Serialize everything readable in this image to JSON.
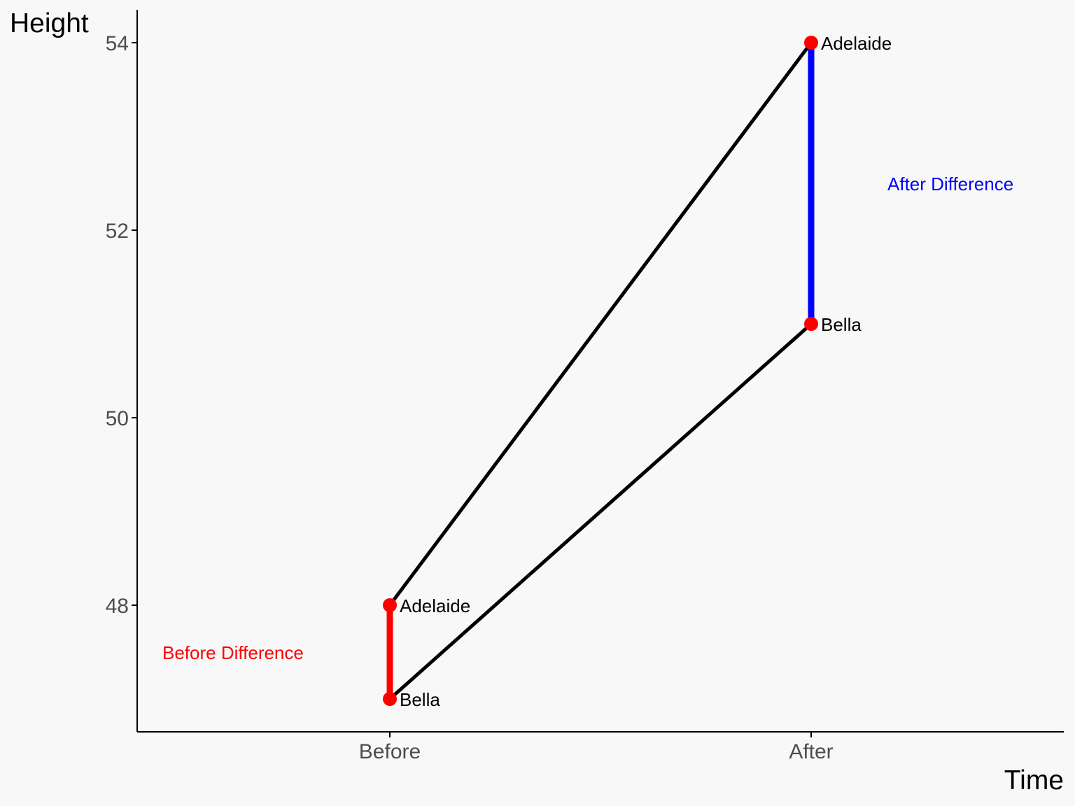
{
  "chart_data": {
    "type": "line",
    "xlabel": "Time",
    "ylabel": "Height",
    "categories": [
      "Before",
      "After"
    ],
    "yticks": [
      48,
      50,
      52,
      54
    ],
    "ylim": [
      46.7,
      54.35
    ],
    "grid": false,
    "series": [
      {
        "name": "Adelaide",
        "values": [
          48,
          54
        ]
      },
      {
        "name": "Bella",
        "values": [
          47,
          51
        ]
      }
    ],
    "annotations": [
      {
        "text": "Before Difference",
        "category": "Before",
        "from": 47,
        "to": 48,
        "color": "#ff0000"
      },
      {
        "text": "After Difference",
        "category": "After",
        "from": 51,
        "to": 54,
        "color": "#0000ff"
      }
    ],
    "colors": {
      "line": "#000000",
      "point": "#ff0000",
      "axis": "#000000"
    }
  }
}
